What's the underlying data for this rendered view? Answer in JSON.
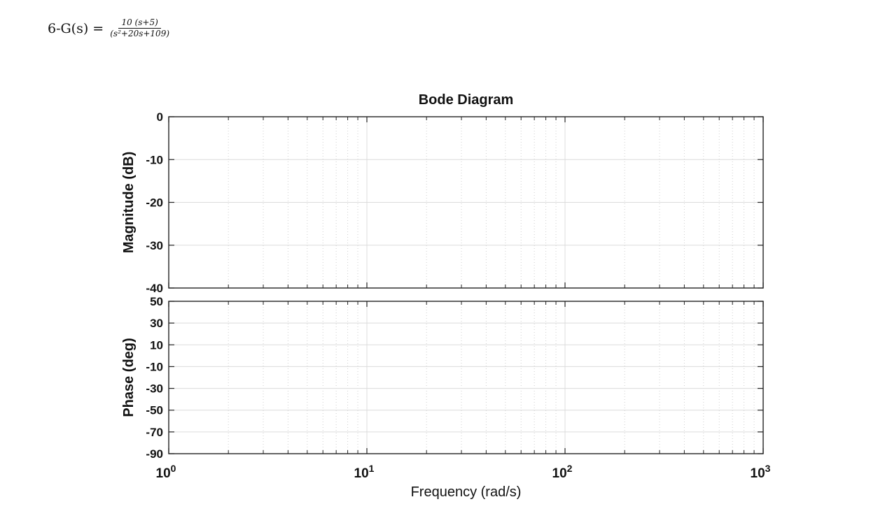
{
  "problem": {
    "label": "6-G(s) =",
    "numerator": "10 (s+5)",
    "denominator": "(s²+20s+109)"
  },
  "chart_data": {
    "type": "line",
    "title": "Bode Diagram",
    "xlabel": "Frequency  (rad/s)",
    "xscale": "log",
    "xlim": [
      1,
      1000
    ],
    "x_tick_labels": [
      "10^0",
      "10^1",
      "10^2",
      "10^3"
    ],
    "grid": true,
    "panels": [
      {
        "name": "magnitude",
        "ylabel": "Magnitude (dB)",
        "ylim": [
          -40,
          0
        ],
        "yticks": [
          0,
          -10,
          -20,
          -30,
          -40
        ],
        "series": []
      },
      {
        "name": "phase",
        "ylabel": "Phase (deg)",
        "ylim": [
          -90,
          50
        ],
        "yticks": [
          50,
          30,
          10,
          -10,
          -30,
          -50,
          -70,
          -90
        ],
        "series": []
      }
    ]
  }
}
